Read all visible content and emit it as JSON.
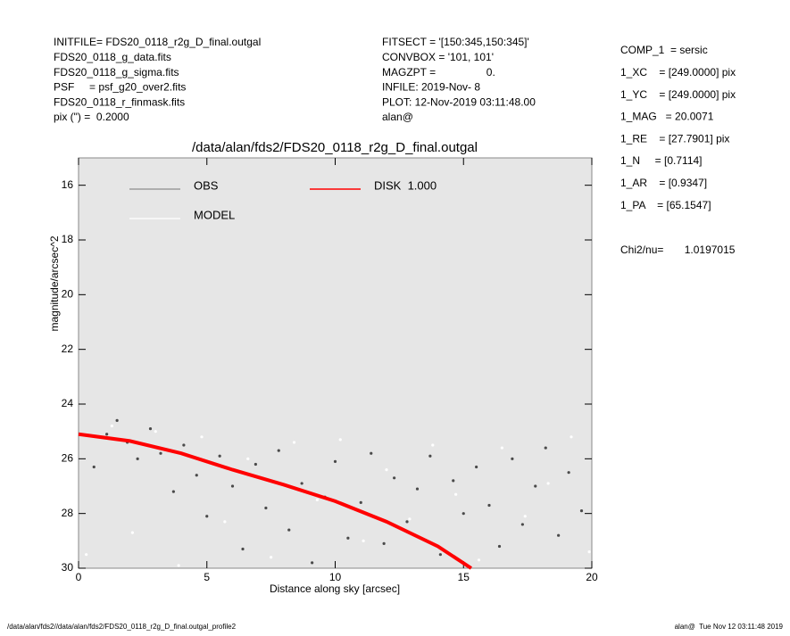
{
  "header": {
    "left": [
      "INITFILE= FDS20_0118_r2g_D_final.outgal",
      "FDS20_0118_g_data.fits",
      "FDS20_0118_g_sigma.fits",
      "PSF     = psf_g20_over2.fits",
      "FDS20_0118_r_finmask.fits",
      "pix (\") =  0.2000"
    ],
    "middle": [
      "FITSECT = '[150:345,150:345]'",
      "CONVBOX = '101, 101'",
      "MAGZPT =                 0.",
      "INFILE: 2019-Nov- 8",
      "PLOT: 12-Nov-2019 03:11:48.00",
      "alan@"
    ],
    "right": [
      "COMP_1  = sersic",
      "1_XC    = [249.0000] pix",
      "1_YC    = [249.0000] pix",
      "1_MAG   = 20.0071",
      "1_RE    = [27.7901] pix",
      "1_N     = [0.7114]",
      "1_AR    = [0.9347]",
      "1_PA    = [65.1547]"
    ],
    "chi": "Chi2/nu=       1.0197015"
  },
  "footer": {
    "left": "/data/alan/fds2//data/alan/fds2/FDS20_0118_r2g_D_final.outgal_profile2",
    "right": "alan@  Tue Nov 12 03:11:48 2019"
  },
  "chart_data": {
    "type": "scatter",
    "title": "/data/alan/fds2/FDS20_0118_r2g_D_final.outgal",
    "x_label": "Distance along sky [arcsec]",
    "y_label": "magnitude/arcsec^2",
    "xlim": [
      0,
      20
    ],
    "xticks": [
      0,
      5,
      10,
      15,
      20
    ],
    "ylim": [
      15,
      30
    ],
    "y_inverted": true,
    "yticks": [
      16,
      18,
      20,
      22,
      24,
      26,
      28,
      30
    ],
    "series": [
      {
        "name": "OBS",
        "color": "#4a4a4a",
        "legend_color": "#8c8c8c",
        "x": [
          0.6,
          1.1,
          1.5,
          1.9,
          2.3,
          2.8,
          3.2,
          3.7,
          4.1,
          4.6,
          5.0,
          5.5,
          6.0,
          6.4,
          6.9,
          7.3,
          7.8,
          8.2,
          8.7,
          9.1,
          9.6,
          10.0,
          10.5,
          11.0,
          11.4,
          11.9,
          12.3,
          12.8,
          13.2,
          13.7,
          14.1,
          14.6,
          15.0,
          15.5,
          16.0,
          16.4,
          16.9,
          17.3,
          17.8,
          18.2,
          18.7,
          19.1,
          19.6
        ],
        "values": [
          26.3,
          25.1,
          24.6,
          25.4,
          26.0,
          24.9,
          25.8,
          27.2,
          25.5,
          26.6,
          28.1,
          25.9,
          27.0,
          29.3,
          26.2,
          27.8,
          25.7,
          28.6,
          26.9,
          29.8,
          27.4,
          26.1,
          28.9,
          27.6,
          25.8,
          29.1,
          26.7,
          28.3,
          27.1,
          25.9,
          29.5,
          26.8,
          28.0,
          26.3,
          27.7,
          29.2,
          26.0,
          28.4,
          27.0,
          25.6,
          28.8,
          26.5,
          27.9
        ]
      },
      {
        "name": "MODEL",
        "color": "#ffffff",
        "legend_color": "#ffffff",
        "x": [
          0.3,
          1.3,
          2.1,
          3.0,
          3.9,
          4.8,
          5.7,
          6.6,
          7.5,
          8.4,
          9.3,
          10.2,
          11.1,
          12.0,
          12.9,
          13.8,
          14.7,
          15.6,
          16.5,
          17.4,
          18.3,
          19.2,
          19.9
        ],
        "values": [
          29.5,
          24.8,
          28.7,
          25.0,
          29.9,
          25.2,
          28.3,
          26.0,
          29.6,
          25.4,
          27.5,
          25.3,
          29.0,
          26.4,
          28.2,
          25.5,
          27.3,
          29.7,
          25.6,
          28.1,
          26.9,
          25.2,
          29.4
        ]
      },
      {
        "name": "DISK  1.000",
        "color": "#ff0000",
        "legend_color": "#ff0000",
        "line": true,
        "x": [
          0,
          2,
          4,
          6,
          8,
          10,
          12,
          14,
          15.3
        ],
        "values": [
          25.1,
          25.35,
          25.8,
          26.4,
          26.95,
          27.55,
          28.3,
          29.2,
          30
        ]
      }
    ]
  }
}
